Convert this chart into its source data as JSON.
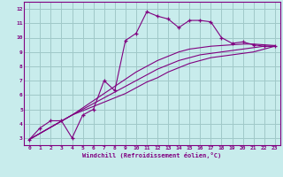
{
  "title": "",
  "xlabel": "Windchill (Refroidissement éolien,°C)",
  "ylabel": "",
  "bg_color": "#c8ecec",
  "grid_color": "#a0c8c8",
  "line_color": "#800080",
  "xlim": [
    -0.5,
    23.5
  ],
  "ylim": [
    2.5,
    12.5
  ],
  "xticks": [
    0,
    1,
    2,
    3,
    4,
    5,
    6,
    7,
    8,
    9,
    10,
    11,
    12,
    13,
    14,
    15,
    16,
    17,
    18,
    19,
    20,
    21,
    22,
    23
  ],
  "yticks": [
    3,
    4,
    5,
    6,
    7,
    8,
    9,
    10,
    11,
    12
  ],
  "lines": [
    {
      "x": [
        0,
        1,
        2,
        3,
        4,
        5,
        6,
        7,
        8,
        9,
        10,
        11,
        12,
        13,
        14,
        15,
        16,
        17,
        18,
        19,
        20,
        21,
        22,
        23
      ],
      "y": [
        2.9,
        3.7,
        4.2,
        4.2,
        3.0,
        4.6,
        5.0,
        7.0,
        6.3,
        9.8,
        10.3,
        11.8,
        11.5,
        11.3,
        10.7,
        11.2,
        11.2,
        11.1,
        10.0,
        9.6,
        9.7,
        9.5,
        9.4,
        9.4
      ],
      "marker": true
    },
    {
      "x": [
        0,
        4,
        5,
        6,
        7,
        8,
        9,
        10,
        11,
        12,
        13,
        14,
        15,
        16,
        17,
        18,
        19,
        20,
        21,
        22,
        23
      ],
      "y": [
        2.9,
        4.6,
        5.1,
        5.6,
        6.1,
        6.6,
        7.1,
        7.6,
        8.0,
        8.4,
        8.7,
        9.0,
        9.2,
        9.3,
        9.4,
        9.45,
        9.5,
        9.55,
        9.55,
        9.5,
        9.45
      ],
      "marker": false
    },
    {
      "x": [
        0,
        4,
        5,
        6,
        7,
        8,
        9,
        10,
        11,
        12,
        13,
        14,
        15,
        16,
        17,
        18,
        19,
        20,
        21,
        22,
        23
      ],
      "y": [
        2.9,
        4.6,
        5.0,
        5.4,
        5.8,
        6.2,
        6.6,
        7.0,
        7.4,
        7.8,
        8.1,
        8.4,
        8.6,
        8.8,
        8.9,
        9.0,
        9.1,
        9.2,
        9.3,
        9.4,
        9.4
      ],
      "marker": false
    },
    {
      "x": [
        0,
        4,
        5,
        6,
        7,
        8,
        9,
        10,
        11,
        12,
        13,
        14,
        15,
        16,
        17,
        18,
        19,
        20,
        21,
        22,
        23
      ],
      "y": [
        2.9,
        4.6,
        4.9,
        5.2,
        5.5,
        5.8,
        6.1,
        6.5,
        6.9,
        7.2,
        7.6,
        7.9,
        8.2,
        8.4,
        8.6,
        8.7,
        8.8,
        8.9,
        9.0,
        9.2,
        9.4
      ],
      "marker": false
    }
  ]
}
